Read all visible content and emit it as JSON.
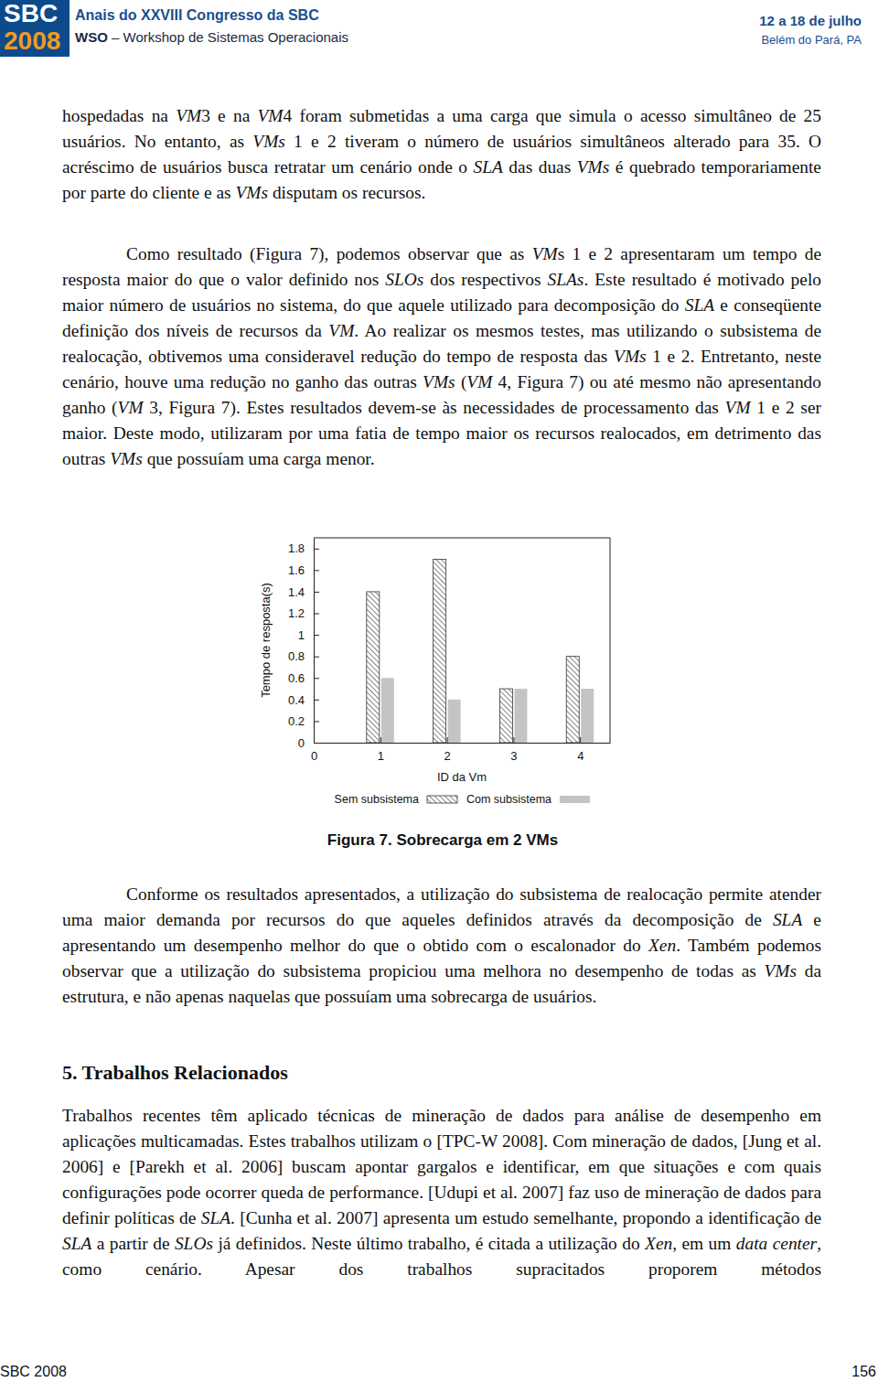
{
  "header": {
    "logo_name": "SBC",
    "logo_year": "2008",
    "title": "Anais do XXVIII Congresso da SBC",
    "subtitle_code": "WSO",
    "subtitle": "– Workshop de Sistemas Operacionais",
    "date": "12 a 18 de julho",
    "place": "Belém do Pará, PA"
  },
  "text_before": [
    [
      "hospedadas na ",
      "VM",
      "3 e na ",
      "VM",
      "4 foram submetidas a uma carga que simula o acesso simultâneo de 25 usuários. No entanto, as ",
      "VMs",
      " 1 e 2 tiveram o número de usuários simultâneos alterado para 35. O acréscimo de usuários busca retratar um cenário onde o ",
      "SLA",
      " das duas ",
      "VMs",
      " é quebrado temporariamente por parte do cliente e as ",
      "VMs",
      " disputam os recursos."
    ],
    [
      "Como resultado (Figura 7), podemos observar que as ",
      "VM",
      "s 1 e 2 apresentaram um tempo de resposta maior do que o valor definido nos ",
      "SLOs",
      " dos respectivos ",
      "SLAs",
      ". Este resultado é motivado pelo maior número de usuários no sistema, do que aquele utilizado para decomposição do ",
      "SLA",
      " e conseqüente definição dos níveis de recursos da ",
      "VM",
      ". Ao realizar os mesmos testes, mas utilizando o subsistema de realocação, obtivemos uma consideravel redução do tempo de resposta das ",
      "VMs",
      " 1 e 2. Entretanto, neste cenário, houve uma redução no ganho das outras ",
      "VMs",
      " (",
      "VM",
      " 4, Figura 7) ou até mesmo não apresentando ganho (",
      "VM",
      " 3, Figura 7). Estes resultados devem-se às necessidades de processamento das ",
      "VM",
      " 1 e 2 ser maior. Deste modo, utilizaram por uma fatia de tempo maior os recursos realocados, em detrimento das outras ",
      "VMs",
      " que possuíam uma carga menor."
    ]
  ],
  "chart_data": {
    "type": "bar",
    "x": [
      1,
      2,
      3,
      4
    ],
    "xlim": [
      0,
      4.45
    ],
    "xticks": [
      0,
      1,
      2,
      3,
      4
    ],
    "ylim": [
      0,
      1.9
    ],
    "yticks": [
      0,
      0.2,
      0.4,
      0.6,
      0.8,
      1,
      1.2,
      1.4,
      1.6,
      1.8
    ],
    "x_label": "ID da Vm",
    "y_label": "Tempo de resposta(s)",
    "series": [
      {
        "name": "Sem subsistema",
        "color": "#333333",
        "line_style": "hatched",
        "values": [
          1.4,
          1.7,
          0.5,
          0.8
        ]
      },
      {
        "name": "Com subsistema",
        "color": "#c4c4c4",
        "line_style": "solid",
        "values": [
          0.6,
          0.4,
          0.5,
          0.5
        ]
      }
    ],
    "grid": false,
    "legend": "bottom"
  },
  "figure_caption": "Figura 7. Sobrecarga em 2 VMs",
  "text_after": [
    [
      "Conforme os resultados apresentados, a utilização do subsistema de realocação permite atender uma maior demanda por recursos do que aqueles definidos através da decomposição de ",
      "SLA",
      " e apresentando um desempenho melhor do que o obtido com o escalonador do ",
      "Xen",
      ". Também podemos observar que a utilização do subsistema propiciou uma melhora no desempenho de todas as ",
      "VMs",
      " da estrutura, e não apenas naquelas que possuíam uma sobrecarga de usuários."
    ]
  ],
  "section": {
    "heading": "5. Trabalhos Relacionados",
    "paragraphs": [
      [
        "Trabalhos recentes têm aplicado técnicas de mineração de dados para análise de desempenho em aplicações multicamadas. Estes trabalhos utilizam o [TPC-W 2008]. Com mineração de dados, [Jung et al. 2006] e [Parekh et al. 2006] buscam apontar gargalos e identificar, em que situações e com quais configurações pode ocorrer queda de performance. [Udupi et al. 2007] faz uso de mineração de dados para definir políticas de ",
        "SLA",
        ". [Cunha et al. 2007] apresenta um estudo semelhante, propondo a identificação de ",
        "SLA",
        " a partir de ",
        "SLOs",
        " já definidos. Neste último trabalho, é citada a utilização do ",
        "Xen",
        ", em um ",
        "data center",
        ", como cenário. Apesar dos trabalhos supracitados proporem métodos"
      ]
    ]
  },
  "footer": {
    "left": "SBC 2008",
    "page": "156"
  }
}
